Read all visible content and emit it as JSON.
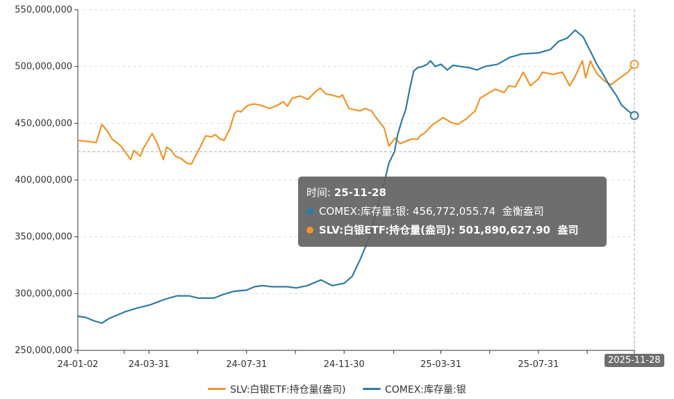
{
  "chart_data": {
    "type": "line",
    "title": "",
    "ylim": [
      250000000,
      550000000
    ],
    "y_ticks": [
      "250,000,000",
      "300,000,000",
      "350,000,000",
      "400,000,000",
      "450,000,000",
      "500,000,000",
      "550,000,000"
    ],
    "y_tick_values": [
      250000000,
      300000000,
      350000000,
      400000000,
      450000000,
      500000000,
      550000000
    ],
    "x_ticks": [
      "24-01-02",
      "24-03-31",
      "24-07-31",
      "24-11-30",
      "25-03-31",
      "25-07-31",
      "25-11-28"
    ],
    "x_range": [
      "24-01-02",
      "25-11-28"
    ],
    "grid": true,
    "legend_position": "bottom",
    "series": [
      {
        "name": "SLV:白银ETF:持仓量(盎司)",
        "color": "#f39425",
        "x": [
          "24-01-02",
          "24-01-25",
          "24-02-01",
          "24-02-08",
          "24-02-14",
          "24-02-25",
          "24-03-01",
          "24-03-08",
          "24-03-12",
          "24-03-20",
          "24-03-24",
          "24-04-04",
          "24-04-10",
          "24-04-18",
          "24-04-22",
          "24-04-28",
          "24-05-03",
          "24-05-10",
          "24-05-17",
          "24-05-23",
          "24-06-03",
          "24-06-10",
          "24-06-17",
          "24-06-22",
          "24-06-28",
          "24-07-03",
          "24-07-10",
          "24-07-16",
          "24-07-20",
          "24-07-24",
          "24-07-31",
          "24-08-03",
          "24-08-09",
          "24-08-17",
          "24-08-29",
          "24-09-08",
          "24-09-15",
          "24-09-20",
          "24-09-26",
          "24-10-06",
          "24-10-16",
          "24-10-24",
          "24-10-31",
          "24-11-07",
          "24-11-14",
          "24-11-24",
          "24-11-28",
          "24-12-06",
          "24-12-12",
          "24-12-20",
          "24-12-26",
          "25-01-03",
          "25-01-09",
          "25-01-19",
          "25-01-25",
          "25-02-02",
          "25-02-08",
          "25-02-22",
          "25-03-02",
          "25-03-05",
          "25-03-10",
          "25-03-21",
          "25-04-03",
          "25-04-12",
          "25-04-21",
          "25-05-02",
          "25-05-13",
          "25-05-19",
          "25-05-28",
          "25-06-07",
          "25-06-18",
          "25-06-24",
          "25-07-02",
          "25-07-12",
          "25-07-21",
          "25-07-31",
          "25-08-05",
          "25-08-18",
          "25-08-30",
          "25-09-08",
          "25-09-14",
          "25-09-18",
          "25-09-24",
          "25-09-28",
          "25-10-04",
          "25-10-08",
          "25-10-13",
          "25-10-22",
          "25-10-30",
          "25-11-10",
          "25-11-20",
          "25-11-28"
        ],
        "values": [
          435000000,
          433000000,
          449000000,
          443000000,
          436000000,
          430000000,
          425000000,
          418000000,
          426000000,
          421000000,
          428000000,
          441000000,
          433000000,
          418000000,
          429000000,
          426000000,
          421000000,
          419000000,
          415000000,
          414000000,
          429000000,
          439000000,
          438000000,
          440000000,
          436000000,
          435000000,
          445000000,
          459000000,
          461000000,
          460000000,
          465000000,
          466000000,
          467000000,
          466000000,
          463000000,
          466000000,
          469000000,
          465000000,
          472000000,
          474000000,
          471000000,
          477000000,
          481000000,
          476000000,
          475000000,
          473000000,
          475000000,
          463000000,
          462000000,
          461000000,
          463000000,
          461000000,
          455000000,
          446000000,
          430000000,
          437000000,
          432000000,
          436000000,
          436000000,
          439000000,
          441000000,
          449000000,
          455000000,
          451000000,
          449000000,
          454000000,
          461000000,
          472000000,
          476000000,
          480000000,
          477000000,
          483000000,
          482000000,
          495000000,
          483000000,
          489000000,
          495000000,
          493000000,
          495000000,
          483000000,
          490000000,
          496000000,
          505000000,
          490000000,
          505000000,
          499000000,
          493000000,
          487000000,
          484000000,
          490000000,
          495000000,
          501890627.9
        ]
      },
      {
        "name": "COMEX:库存量:银",
        "color": "#2e7ba6",
        "x": [
          "24-01-02",
          "24-01-12",
          "24-01-22",
          "24-02-01",
          "24-02-10",
          "24-02-20",
          "24-03-01",
          "24-03-15",
          "24-04-01",
          "24-04-20",
          "24-05-05",
          "24-05-20",
          "24-06-01",
          "24-06-20",
          "24-07-01",
          "24-07-15",
          "24-07-31",
          "24-08-10",
          "24-08-20",
          "24-09-01",
          "24-09-20",
          "24-10-01",
          "24-10-15",
          "24-11-01",
          "24-11-15",
          "24-11-30",
          "24-12-10",
          "24-12-20",
          "25-01-01",
          "25-01-10",
          "25-01-20",
          "25-01-25",
          "25-02-01",
          "25-02-05",
          "25-02-10",
          "25-02-15",
          "25-02-20",
          "25-02-25",
          "25-03-02",
          "25-03-08",
          "25-03-14",
          "25-03-18",
          "25-03-24",
          "25-03-31",
          "25-04-08",
          "25-04-15",
          "25-04-25",
          "25-05-05",
          "25-05-15",
          "25-05-25",
          "25-06-10",
          "25-06-25",
          "25-07-10",
          "25-07-31",
          "25-08-15",
          "25-08-25",
          "25-09-05",
          "25-09-15",
          "25-09-25",
          "25-10-05",
          "25-10-12",
          "25-10-20",
          "25-10-27",
          "25-11-05",
          "25-11-12",
          "25-11-20",
          "25-11-28"
        ],
        "values": [
          280000000,
          279000000,
          276000000,
          274000000,
          278000000,
          281000000,
          284000000,
          287000000,
          290000000,
          295000000,
          298000000,
          298000000,
          296000000,
          296000000,
          299000000,
          302000000,
          303000000,
          306000000,
          307000000,
          306000000,
          306000000,
          305000000,
          307000000,
          312000000,
          307000000,
          309000000,
          315000000,
          330000000,
          350000000,
          375000000,
          400000000,
          415000000,
          425000000,
          440000000,
          452000000,
          462000000,
          480000000,
          496000000,
          499000000,
          500000000,
          502000000,
          505000000,
          500000000,
          502000000,
          497000000,
          501000000,
          500000000,
          499000000,
          497000000,
          500000000,
          502000000,
          508000000,
          511000000,
          512000000,
          515000000,
          522000000,
          525000000,
          532000000,
          526000000,
          512000000,
          502000000,
          493000000,
          484000000,
          475000000,
          466000000,
          461000000,
          456772055.74
        ]
      }
    ],
    "tooltip": {
      "time_label": "时间:",
      "time_value": "25-11-28",
      "lines": [
        {
          "series": "COMEX:库存量:银",
          "value": "456,772,055.74",
          "unit": "金衡盎司",
          "color": "#2e7ba6"
        },
        {
          "series": "SLV:白银ETF:持仓量(盎司)",
          "value": "501,890,627.90",
          "unit": "盎司",
          "color": "#f39425"
        }
      ]
    },
    "axis_pointer": {
      "x_label": "2025-11-28",
      "y_value": 425000000
    }
  }
}
